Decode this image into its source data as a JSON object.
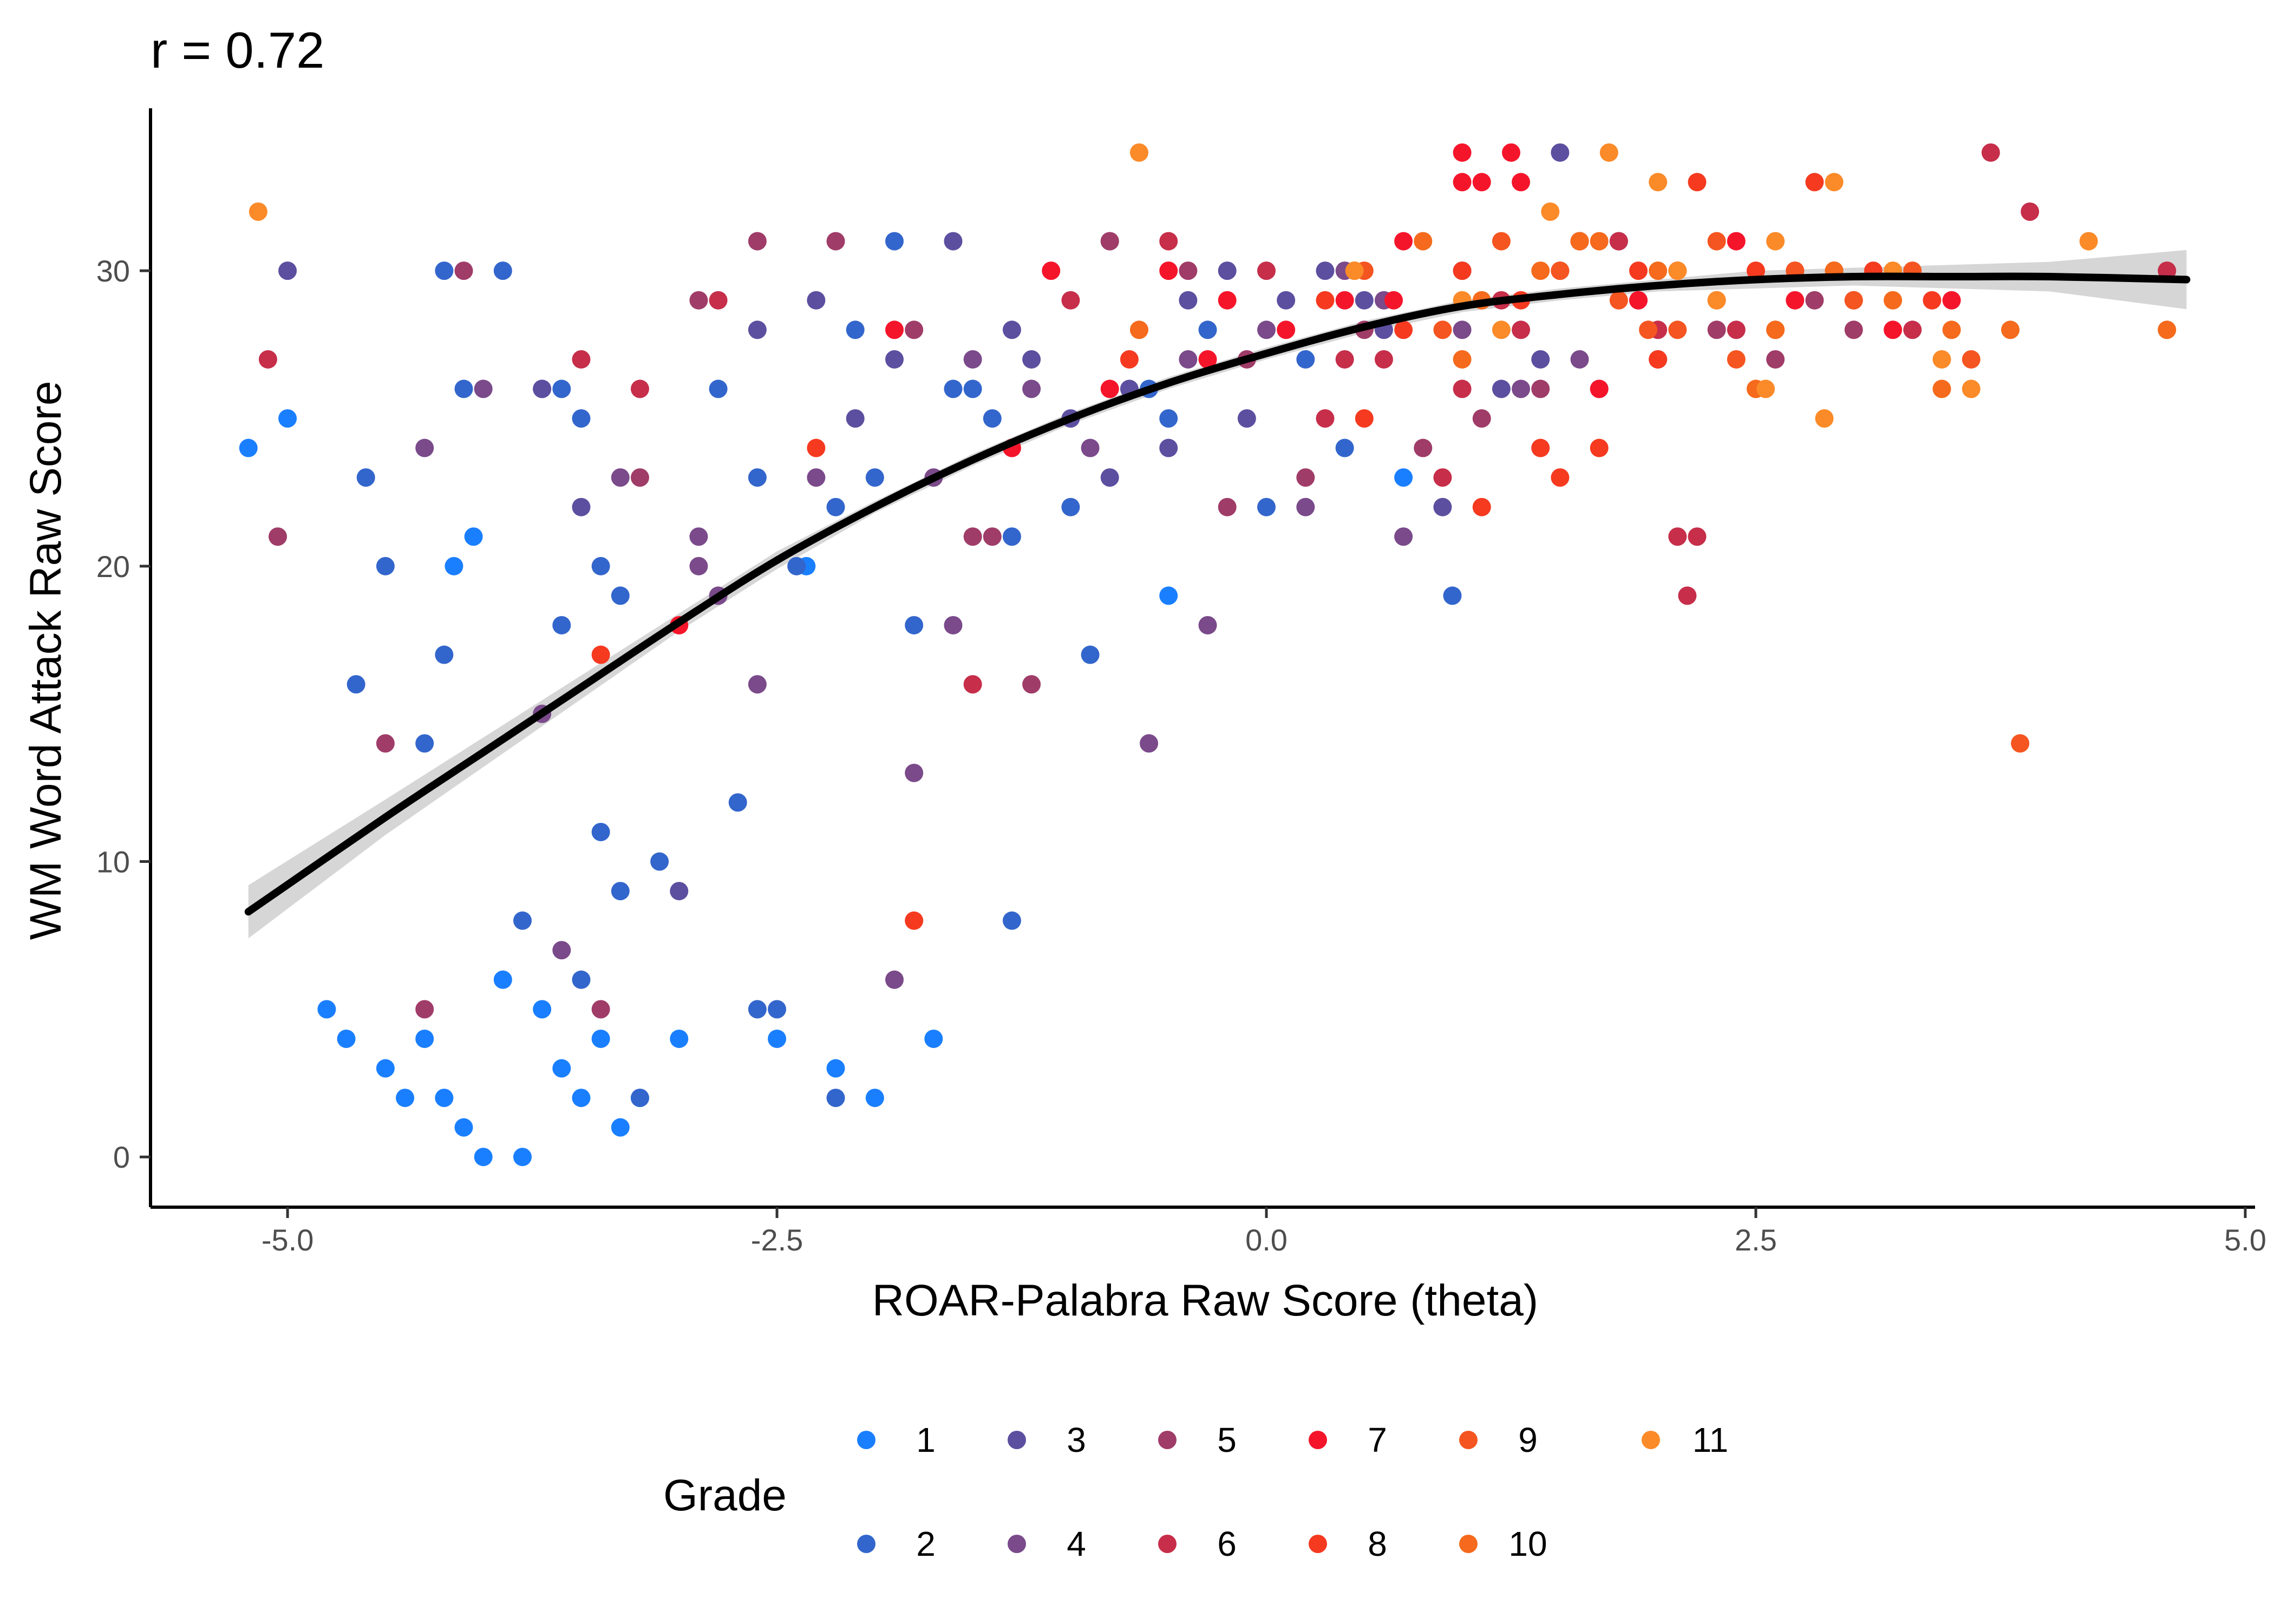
{
  "chart_data": {
    "type": "scatter",
    "title": "r = 0.72",
    "xlabel": "ROAR-Palabra Raw Score (theta)",
    "ylabel": "WM Word Attack Raw Score",
    "xlim": [
      -5.7,
      5.05
    ],
    "ylim": [
      -1.7,
      35.5
    ],
    "x_ticks": [
      -5.0,
      -2.5,
      0.0,
      2.5,
      5.0
    ],
    "x_tick_labels": [
      "-5.0",
      "-2.5",
      "0.0",
      "2.5",
      "5.0"
    ],
    "y_ticks": [
      0,
      10,
      20,
      30
    ],
    "y_tick_labels": [
      "0",
      "10",
      "20",
      "30"
    ],
    "grid": false,
    "legend": {
      "title": "Grade",
      "placement": "bottom",
      "entries": [
        {
          "label": "1",
          "color": "#1a7fff"
        },
        {
          "label": "2",
          "color": "#3366cc"
        },
        {
          "label": "3",
          "color": "#5c4fa0"
        },
        {
          "label": "4",
          "color": "#7a4a8a"
        },
        {
          "label": "5",
          "color": "#a03c68"
        },
        {
          "label": "6",
          "color": "#c62e4a"
        },
        {
          "label": "7",
          "color": "#f5152b"
        },
        {
          "label": "8",
          "color": "#f53a20"
        },
        {
          "label": "9",
          "color": "#f55520"
        },
        {
          "label": "10",
          "color": "#f56a1c"
        },
        {
          "label": "11",
          "color": "#fb8a28"
        }
      ]
    },
    "fit_line": {
      "color": "#000000",
      "band_color": "#c8c8c8",
      "x": [
        -5.2,
        -4.5,
        -4.0,
        -3.5,
        -3.0,
        -2.5,
        -2.0,
        -1.5,
        -1.0,
        -0.5,
        0.0,
        0.5,
        1.0,
        1.5,
        2.0,
        2.5,
        3.0,
        3.5,
        4.0,
        4.7
      ],
      "y": [
        8.3,
        11.5,
        13.7,
        15.9,
        18.1,
        20.2,
        22.0,
        23.6,
        25.0,
        26.2,
        27.2,
        28.1,
        28.8,
        29.2,
        29.5,
        29.7,
        29.8,
        29.8,
        29.8,
        29.7
      ],
      "ci_low": [
        7.4,
        10.9,
        13.2,
        15.5,
        17.8,
        19.9,
        21.8,
        23.4,
        24.8,
        26.0,
        27.0,
        27.9,
        28.6,
        29.0,
        29.3,
        29.4,
        29.5,
        29.4,
        29.3,
        28.7
      ],
      "ci_high": [
        9.2,
        12.1,
        14.2,
        16.3,
        18.4,
        20.5,
        22.2,
        23.8,
        25.2,
        26.4,
        27.4,
        28.3,
        29.0,
        29.4,
        29.7,
        30.0,
        30.1,
        30.2,
        30.3,
        30.7
      ]
    },
    "series": [
      {
        "name": "1",
        "color": "#1a7fff",
        "x": [
          -4.0,
          -3.8,
          -4.1,
          -4.2,
          -3.5,
          -3.6,
          -3.7,
          -4.3,
          -4.5,
          -4.7,
          -4.8,
          -3.3,
          -3.2,
          -3.4,
          -3.9,
          -4.4,
          -3.0,
          -2.5,
          -2.2,
          -2.0,
          -1.7,
          -4.15,
          -4.05,
          -2.35,
          -0.5,
          0.7,
          -5.2,
          -5.0
        ],
        "y": [
          0,
          0,
          1,
          2,
          2,
          3,
          5,
          4,
          3,
          4,
          5,
          1,
          2,
          4,
          6,
          2,
          4,
          4,
          3,
          2,
          4,
          20,
          21,
          20,
          19,
          23,
          24,
          25
        ]
      },
      {
        "name": "2",
        "color": "#3366cc",
        "x": [
          -4.2,
          -3.9,
          -4.1,
          -3.7,
          -3.5,
          -3.6,
          -3.4,
          -3.3,
          -2.8,
          -2.6,
          -2.2,
          -2.0,
          -1.9,
          -1.5,
          -1.4,
          -4.6,
          -4.5,
          -4.3,
          -3.8,
          -3.3,
          -3.1,
          -2.7,
          -2.4,
          -2.1,
          -1.8,
          -1.6,
          -1.3,
          -0.9,
          -0.6,
          0.2,
          0.95,
          -2.2,
          -1.3,
          -1.0,
          -0.5,
          -0.3,
          0.0,
          0.4,
          -3.2,
          -3.5,
          -3.4,
          -2.6,
          -2.5,
          -4.2,
          -3.6,
          -4.65
        ],
        "y": [
          30,
          30,
          26,
          26,
          25,
          18,
          20,
          19,
          26,
          23,
          22,
          23,
          31,
          26,
          25,
          23,
          20,
          14,
          8,
          9,
          10,
          12,
          20,
          28,
          18,
          26,
          21,
          17,
          26,
          27,
          19,
          2,
          8,
          22,
          25,
          28,
          22,
          24,
          2,
          6,
          11,
          5,
          5,
          17,
          26,
          16
        ]
      },
      {
        "name": "3",
        "color": "#5c4fa0",
        "x": [
          -5.0,
          -3.7,
          -3.5,
          -2.6,
          -2.3,
          -1.9,
          -1.6,
          -1.3,
          -1.0,
          -0.7,
          -0.4,
          -0.2,
          0.1,
          0.3,
          0.6,
          0.9,
          1.2,
          -3.0,
          -2.1,
          -1.2,
          -0.8,
          -0.5,
          -0.1,
          0.5,
          1.0,
          1.4,
          1.5,
          1.8
        ],
        "y": [
          30,
          26,
          22,
          28,
          29,
          27,
          31,
          28,
          25,
          26,
          29,
          30,
          29,
          30,
          28,
          22,
          26,
          9,
          25,
          27,
          23,
          24,
          25,
          29,
          30,
          27,
          34,
          31
        ]
      },
      {
        "name": "4",
        "color": "#7a4a8a",
        "x": [
          -4.3,
          -4.0,
          -3.7,
          -3.3,
          -2.9,
          -2.6,
          -2.3,
          -1.8,
          -1.6,
          -1.2,
          -0.9,
          -0.6,
          -0.3,
          0.0,
          0.4,
          0.7,
          1.0,
          1.3,
          1.6,
          1.9,
          -3.6,
          -2.8,
          -1.7,
          -0.4,
          0.2,
          0.6,
          -0.8,
          -1.5,
          -2.9,
          -1.9
        ],
        "y": [
          24,
          26,
          15,
          23,
          20,
          16,
          23,
          13,
          18,
          26,
          24,
          14,
          18,
          28,
          30,
          21,
          28,
          26,
          27,
          29,
          7,
          19,
          23,
          27,
          22,
          29,
          31,
          27,
          21,
          6
        ]
      },
      {
        "name": "5",
        "color": "#a03c68",
        "x": [
          -5.05,
          -4.5,
          -4.1,
          -3.4,
          -2.9,
          -2.6,
          -2.2,
          -1.8,
          -1.5,
          -1.2,
          -0.8,
          -0.4,
          -0.1,
          0.2,
          0.5,
          0.8,
          1.1,
          1.4,
          1.7,
          2.0,
          2.3,
          2.6,
          2.8,
          3.0,
          -3.2,
          -4.3,
          -1.4,
          -0.2
        ],
        "y": [
          21,
          14,
          30,
          5,
          29,
          31,
          31,
          28,
          21,
          16,
          31,
          30,
          27,
          23,
          28,
          24,
          25,
          26,
          26,
          27,
          28,
          27,
          29,
          28,
          23,
          5,
          21,
          22
        ]
      },
      {
        "name": "6",
        "color": "#c62e4a",
        "x": [
          -5.1,
          -3.5,
          -3.2,
          -2.8,
          -1.5,
          -1.0,
          -0.5,
          0.0,
          0.3,
          0.6,
          0.9,
          1.2,
          1.5,
          1.8,
          2.0,
          2.2,
          2.4,
          2.7,
          3.0,
          3.3,
          3.7,
          3.9,
          4.6,
          2.15,
          2.1,
          1.0,
          1.3,
          0.4
        ],
        "y": [
          27,
          27,
          26,
          29,
          16,
          29,
          31,
          30,
          25,
          27,
          23,
          29,
          30,
          31,
          28,
          21,
          28,
          30,
          29,
          28,
          34,
          32,
          30,
          19,
          21,
          26,
          28,
          27
        ]
      },
      {
        "name": "7",
        "color": "#f5152b",
        "x": [
          -3.0,
          -1.9,
          -1.1,
          -0.8,
          -0.5,
          -0.2,
          0.1,
          0.4,
          0.7,
          1.0,
          1.3,
          1.6,
          1.9,
          2.1,
          2.4,
          2.7,
          2.9,
          3.2,
          3.5,
          1.0,
          1.25,
          0.65,
          1.7,
          1.1,
          -1.3,
          -0.3
        ],
        "y": [
          18,
          28,
          30,
          26,
          30,
          29,
          28,
          29,
          31,
          34,
          33,
          31,
          29,
          30,
          31,
          29,
          30,
          28,
          29,
          33,
          34,
          29,
          26,
          33,
          24,
          27
        ]
      },
      {
        "name": "8",
        "color": "#f53a20",
        "x": [
          -3.4,
          -1.8,
          -2.3,
          -0.7,
          0.3,
          0.7,
          1.0,
          1.3,
          1.6,
          1.9,
          2.2,
          2.5,
          2.8,
          3.1,
          3.4,
          1.5,
          2.0,
          1.7,
          0.5,
          1.1,
          1.4
        ],
        "y": [
          17,
          8,
          24,
          27,
          29,
          28,
          30,
          29,
          31,
          30,
          33,
          30,
          33,
          30,
          29,
          23,
          27,
          24,
          25,
          22,
          24
        ]
      },
      {
        "name": "9",
        "color": "#f55520",
        "x": [
          0.5,
          0.9,
          1.2,
          1.5,
          1.8,
          2.1,
          2.4,
          2.7,
          3.0,
          3.3,
          3.6,
          3.85,
          2.6,
          2.9,
          2.3,
          1.95
        ],
        "y": [
          30,
          28,
          31,
          30,
          29,
          28,
          27,
          30,
          29,
          30,
          27,
          14,
          28,
          30,
          31,
          28
        ]
      },
      {
        "name": "10",
        "color": "#f56a1c",
        "x": [
          -0.65,
          0.45,
          0.8,
          1.1,
          1.4,
          1.7,
          2.0,
          2.3,
          2.6,
          2.9,
          3.2,
          3.5,
          3.8,
          4.6,
          2.5,
          1.6,
          1.0,
          3.45
        ],
        "y": [
          28,
          30,
          31,
          29,
          30,
          31,
          30,
          29,
          28,
          30,
          29,
          28,
          28,
          28,
          26,
          31,
          27,
          26
        ]
      },
      {
        "name": "11",
        "color": "#fb8a28",
        "x": [
          -5.15,
          -0.65,
          0.45,
          1.0,
          1.45,
          1.75,
          2.0,
          2.3,
          2.6,
          2.9,
          3.2,
          3.45,
          3.6,
          4.2,
          2.85,
          2.55,
          1.2,
          2.1
        ],
        "y": [
          32,
          34,
          30,
          29,
          32,
          34,
          33,
          29,
          31,
          33,
          30,
          27,
          26,
          31,
          25,
          26,
          28,
          30
        ]
      }
    ]
  }
}
